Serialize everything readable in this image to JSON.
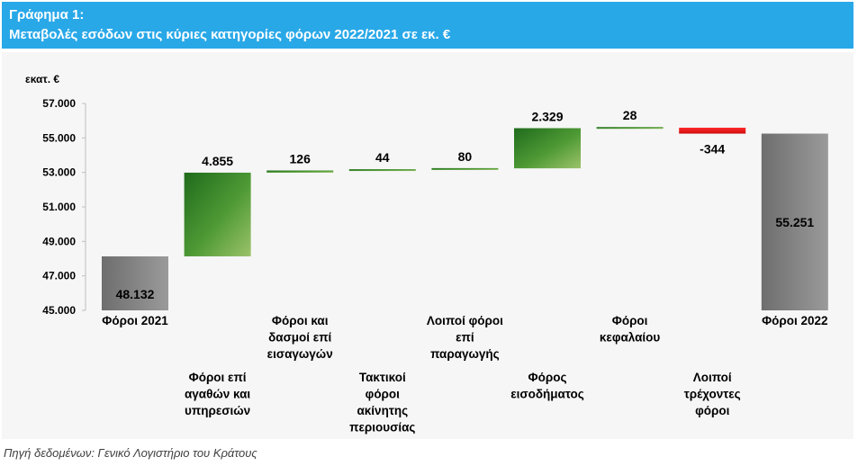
{
  "header": {
    "line1": "Γράφημα 1:",
    "line2": "Μεταβολές εσόδων στις κύριες κατηγορίες φόρων 2022/2021 σε εκ. €"
  },
  "source": "Πηγή δεδομένων: Γενικό Λογιστήριο του Κράτους",
  "colors": {
    "header_bg": "#29a8e8",
    "total_bar": "#7f7f7f",
    "increase_bar": "#3f8f2f",
    "decrease_bar": "#e31b1b"
  },
  "chart_data": {
    "type": "waterfall",
    "unit_label": "εκατ. €",
    "ylim": [
      45000,
      57000
    ],
    "yticks": [
      "45.000",
      "47.000",
      "49.000",
      "51.000",
      "53.000",
      "55.000",
      "57.000"
    ],
    "grid": false,
    "steps": [
      {
        "category": [
          "Φόροι  2021"
        ],
        "kind": "total",
        "value": 48132,
        "label": "48.132"
      },
      {
        "category": [
          "Φόροι επί",
          "αγαθών και",
          "υπηρεσιών"
        ],
        "kind": "increase",
        "value": 4855,
        "label": "4.855"
      },
      {
        "category": [
          "Φόροι και",
          "δασμοί επί",
          "εισαγωγών"
        ],
        "kind": "increase",
        "value": 126,
        "label": "126"
      },
      {
        "category": [
          "Τακτικοί",
          "φόροι",
          "ακίνητης",
          "περιουσίας"
        ],
        "kind": "increase",
        "value": 44,
        "label": "44"
      },
      {
        "category": [
          "Λοιποί φόροι",
          "επί",
          "παραγωγής"
        ],
        "kind": "increase",
        "value": 80,
        "label": "80"
      },
      {
        "category": [
          "Φόρος",
          "εισοδήματος"
        ],
        "kind": "increase",
        "value": 2329,
        "label": "2.329"
      },
      {
        "category": [
          "Φόροι",
          "κεφαλαίου"
        ],
        "kind": "increase",
        "value": 28,
        "label": "28"
      },
      {
        "category": [
          "Λοιποί",
          "τρέχοντες",
          "φόροι"
        ],
        "kind": "decrease",
        "value": -344,
        "label": "-344"
      },
      {
        "category": [
          "Φόροι  2022"
        ],
        "kind": "total",
        "value": 55251,
        "label": "55.251"
      }
    ]
  }
}
